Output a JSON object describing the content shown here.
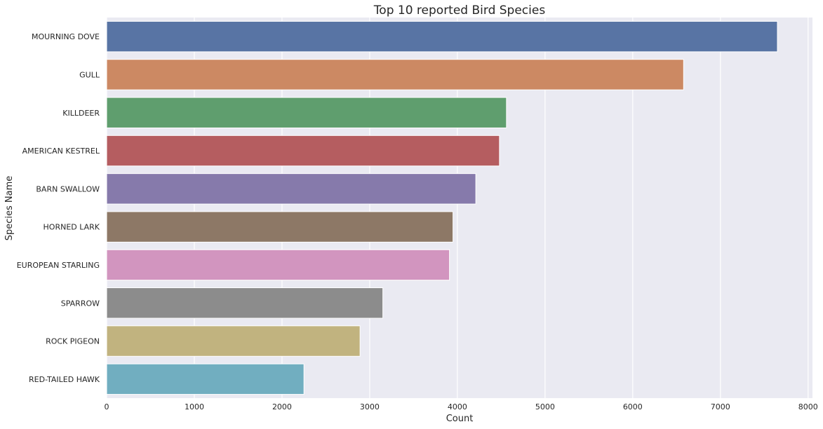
{
  "chart_data": {
    "type": "bar",
    "orientation": "horizontal",
    "title": "Top 10 reported Bird Species",
    "xlabel": "Count",
    "ylabel": "Species Name",
    "xlim": [
      0,
      8050
    ],
    "xticks": [
      0,
      1000,
      2000,
      3000,
      4000,
      5000,
      6000,
      7000,
      8000
    ],
    "grid": true,
    "categories": [
      "MOURNING DOVE",
      "GULL",
      "KILLDEER",
      "AMERICAN KESTREL",
      "BARN SWALLOW",
      "HORNED LARK",
      "EUROPEAN STARLING",
      "SPARROW",
      "ROCK PIGEON",
      "RED-TAILED HAWK"
    ],
    "values": [
      7650,
      6580,
      4560,
      4480,
      4210,
      3950,
      3910,
      3150,
      2890,
      2250
    ],
    "colors": [
      "#5874a4",
      "#cc8963",
      "#5f9e6e",
      "#b55d60",
      "#867aab",
      "#8d7866",
      "#d295bf",
      "#8c8c8c",
      "#c1b37f",
      "#71aec0"
    ],
    "background": "#eaeaf2",
    "grid_color": "#ffffff"
  }
}
